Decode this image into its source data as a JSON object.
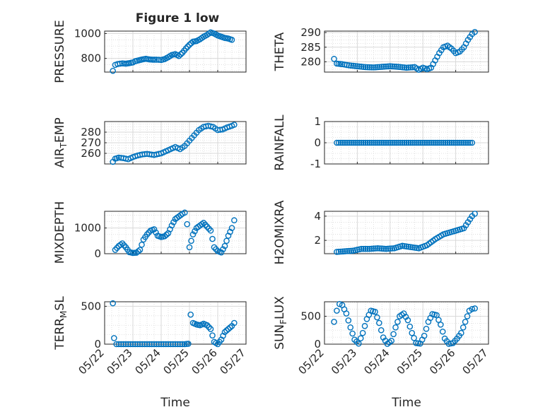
{
  "figure": {
    "title": "Figure 1 low",
    "marker_color": "#0072bd",
    "grid_color": "#d9d9d9",
    "axis_color": "#262626"
  },
  "chart_data": [
    {
      "id": "pressure",
      "type": "scatter",
      "xlabel": "",
      "ylabel": "PRESSURE",
      "xlim": [
        "05/22",
        "05/27"
      ],
      "ylim": [
        690,
        1020
      ],
      "yticks": [
        800,
        1000
      ],
      "show_xticklabels": false,
      "x": [
        "05/22 07:00",
        "05/22 09:00",
        "05/22 11:00",
        "05/22 13:00",
        "05/22 15:00",
        "05/22 18:00",
        "05/22 21:00",
        "05/23 00:00",
        "05/23 02:00",
        "05/23 05:00",
        "05/23 08:00",
        "05/23 11:00",
        "05/23 14:00",
        "05/23 17:00",
        "05/23 20:00",
        "05/24 00:00",
        "05/24 03:00",
        "05/24 06:00",
        "05/24 09:00",
        "05/24 12:00",
        "05/24 15:00",
        "05/24 18:00",
        "05/24 21:00",
        "05/25 00:00",
        "05/25 03:00",
        "05/25 06:00",
        "05/25 09:00",
        "05/25 12:00",
        "05/25 15:00",
        "05/25 18:00",
        "05/25 21:00",
        "05/26 00:00",
        "05/26 03:00",
        "05/26 06:00",
        "05/26 09:00",
        "05/26 12:00"
      ],
      "y": [
        700,
        748,
        755,
        758,
        760,
        758,
        762,
        768,
        778,
        785,
        792,
        797,
        792,
        790,
        790,
        788,
        795,
        810,
        828,
        835,
        820,
        845,
        880,
        910,
        935,
        940,
        955,
        975,
        990,
        1010,
        1000,
        985,
        975,
        965,
        960,
        950
      ]
    },
    {
      "id": "theta",
      "type": "scatter",
      "xlabel": "",
      "ylabel": "THETA",
      "xlim": [
        "05/22",
        "05/27"
      ],
      "ylim": [
        276.5,
        290.5
      ],
      "yticks": [
        280,
        285,
        290
      ],
      "show_xticklabels": false,
      "x": [
        "05/22 07:00",
        "05/22 09:00",
        "05/22 13:00",
        "05/22 18:00",
        "05/23 00:00",
        "05/23 06:00",
        "05/23 12:00",
        "05/23 18:00",
        "05/24 00:00",
        "05/24 06:00",
        "05/24 12:00",
        "05/24 18:00",
        "05/24 21:00",
        "05/25 00:00",
        "05/25 03:00",
        "05/25 06:00",
        "05/25 09:00",
        "05/25 12:00",
        "05/25 15:00",
        "05/25 18:00",
        "05/25 21:00",
        "05/26 00:00",
        "05/26 03:00",
        "05/26 06:00",
        "05/26 09:00",
        "05/26 12:00",
        "05/26 14:00"
      ],
      "y": [
        281,
        279.4,
        279.2,
        278.8,
        278.5,
        278.2,
        278.1,
        278.3,
        278.5,
        278.3,
        278.0,
        278.2,
        277.3,
        278.0,
        277.5,
        278.0,
        280.5,
        283.0,
        285.0,
        285.5,
        284.5,
        283.0,
        283.5,
        285.0,
        287.5,
        289.5,
        290.2
      ]
    },
    {
      "id": "air-temp",
      "type": "scatter",
      "xlabel": "",
      "ylabel": "AIR_TEMP",
      "xlim": [
        "05/22",
        "05/27"
      ],
      "ylim": [
        250,
        290
      ],
      "yticks": [
        260,
        270,
        280
      ],
      "show_xticklabels": false,
      "x": [
        "05/22 07:00",
        "05/22 09:00",
        "05/22 12:00",
        "05/22 16:00",
        "05/22 20:00",
        "05/23 00:00",
        "05/23 04:00",
        "05/23 08:00",
        "05/23 12:00",
        "05/23 18:00",
        "05/24 00:00",
        "05/24 06:00",
        "05/24 12:00",
        "05/24 16:00",
        "05/24 20:00",
        "05/25 00:00",
        "05/25 04:00",
        "05/25 08:00",
        "05/25 12:00",
        "05/25 16:00",
        "05/25 20:00",
        "05/26 00:00",
        "05/26 04:00",
        "05/26 08:00",
        "05/26 12:00",
        "05/26 14:00"
      ],
      "y": [
        252,
        255,
        256,
        255.5,
        254.5,
        256.5,
        258,
        259,
        259.5,
        258.5,
        260,
        263,
        266,
        264,
        267,
        272,
        277,
        282,
        285,
        286,
        285,
        282,
        282.5,
        284.5,
        286,
        287
      ]
    },
    {
      "id": "rainfall",
      "type": "scatter",
      "xlabel": "",
      "ylabel": "RAINFALL",
      "xlim": [
        "05/22",
        "05/27"
      ],
      "ylim": [
        -1,
        1
      ],
      "yticks": [
        -1,
        0,
        1
      ],
      "show_xticklabels": false,
      "x": [
        "05/22 09:00",
        "05/22 18:00",
        "05/23 03:00",
        "05/23 12:00",
        "05/23 21:00",
        "05/24 06:00",
        "05/24 15:00",
        "05/25 00:00",
        "05/25 09:00",
        "05/25 18:00",
        "05/26 03:00",
        "05/26 12:00"
      ],
      "y": [
        0,
        0,
        0,
        0,
        0,
        0,
        0,
        0,
        0,
        0,
        0,
        0
      ]
    },
    {
      "id": "mixdepth",
      "type": "scatter",
      "xlabel": "",
      "ylabel": "MIXDEPTH",
      "xlim": [
        "05/22",
        "05/27"
      ],
      "ylim": [
        0,
        1650
      ],
      "yticks": [
        0,
        1000
      ],
      "show_xticklabels": false,
      "x": [
        "05/22 09:00",
        "05/22 12:00",
        "05/22 15:00",
        "05/22 18:00",
        "05/22 21:00",
        "05/23 00:00",
        "05/23 03:00",
        "05/23 06:00",
        "05/23 09:00",
        "05/23 12:00",
        "05/23 15:00",
        "05/23 18:00",
        "05/23 21:00",
        "05/24 00:00",
        "05/24 03:00",
        "05/24 06:00",
        "05/24 09:00",
        "05/24 12:00",
        "05/24 15:00",
        "05/24 18:00",
        "05/24 20:00",
        "05/24 22:00",
        "05/25 00:00",
        "05/25 03:00",
        "05/25 06:00",
        "05/25 09:00",
        "05/25 12:00",
        "05/25 15:00",
        "05/25 18:00",
        "05/25 21:00",
        "05/26 00:00",
        "05/26 03:00",
        "05/26 06:00",
        "05/26 09:00",
        "05/26 12:00",
        "05/26 14:00"
      ],
      "y": [
        150,
        300,
        400,
        250,
        60,
        30,
        40,
        150,
        550,
        750,
        900,
        950,
        700,
        650,
        680,
        800,
        1100,
        1350,
        1450,
        1550,
        1600,
        1150,
        250,
        750,
        1000,
        1100,
        1200,
        1050,
        900,
        250,
        100,
        50,
        300,
        700,
        1000,
        1300
      ]
    },
    {
      "id": "h2omixra",
      "type": "scatter",
      "xlabel": "",
      "ylabel": "H2OMIXRA",
      "xlim": [
        "05/22",
        "05/27"
      ],
      "ylim": [
        0.9,
        4.4
      ],
      "yticks": [
        2,
        4
      ],
      "show_xticklabels": false,
      "x": [
        "05/22 09:00",
        "05/22 15:00",
        "05/22 21:00",
        "05/23 03:00",
        "05/23 09:00",
        "05/23 15:00",
        "05/23 21:00",
        "05/24 03:00",
        "05/24 09:00",
        "05/24 15:00",
        "05/24 21:00",
        "05/25 03:00",
        "05/25 09:00",
        "05/25 15:00",
        "05/25 21:00",
        "05/26 03:00",
        "05/26 06:00",
        "05/26 09:00",
        "05/26 12:00",
        "05/26 14:00"
      ],
      "y": [
        1.05,
        1.1,
        1.15,
        1.3,
        1.3,
        1.35,
        1.3,
        1.35,
        1.55,
        1.45,
        1.35,
        1.6,
        2.1,
        2.5,
        2.7,
        2.9,
        3.0,
        3.5,
        4.0,
        4.2
      ]
    },
    {
      "id": "terr-msl",
      "type": "scatter",
      "xlabel": "Time",
      "ylabel": "TERR_MSL",
      "xlim": [
        "05/22",
        "05/27"
      ],
      "ylim": [
        0,
        560
      ],
      "yticks": [
        0,
        500
      ],
      "show_xticklabels": true,
      "xticklabels": [
        "05/22",
        "05/23",
        "05/24",
        "05/25",
        "05/26",
        "05/27"
      ],
      "x": [
        "05/22 07:00",
        "05/22 08:00",
        "05/22 10:00",
        "05/22 14:00",
        "05/22 20:00",
        "05/23 02:00",
        "05/23 08:00",
        "05/23 14:00",
        "05/23 20:00",
        "05/24 02:00",
        "05/24 08:00",
        "05/24 14:00",
        "05/24 20:00",
        "05/24 23:00",
        "05/25 01:00",
        "05/25 03:00",
        "05/25 06:00",
        "05/25 09:00",
        "05/25 12:00",
        "05/25 15:00",
        "05/25 18:00",
        "05/25 21:00",
        "05/26 00:00",
        "05/26 03:00",
        "05/26 06:00",
        "05/26 09:00",
        "05/26 12:00",
        "05/26 14:00"
      ],
      "y": [
        540,
        80,
        0,
        0,
        0,
        0,
        0,
        0,
        0,
        0,
        0,
        0,
        0,
        5,
        390,
        280,
        260,
        250,
        270,
        250,
        200,
        30,
        0,
        60,
        160,
        200,
        240,
        280
      ]
    },
    {
      "id": "sun-flux",
      "type": "scatter",
      "xlabel": "Time",
      "ylabel": "SUN_FLUX",
      "xlim": [
        "05/22",
        "05/27"
      ],
      "ylim": [
        0,
        760
      ],
      "yticks": [
        0,
        500
      ],
      "show_xticklabels": true,
      "xticklabels": [
        "05/22",
        "05/23",
        "05/24",
        "05/25",
        "05/26",
        "05/27"
      ],
      "x": [
        "05/22 07:00",
        "05/22 09:00",
        "05/22 11:00",
        "05/22 13:00",
        "05/22 16:00",
        "05/22 19:00",
        "05/22 22:00",
        "05/23 01:00",
        "05/23 04:00",
        "05/23 07:00",
        "05/23 10:00",
        "05/23 13:00",
        "05/23 16:00",
        "05/23 19:00",
        "05/23 22:00",
        "05/24 01:00",
        "05/24 04:00",
        "05/24 07:00",
        "05/24 10:00",
        "05/24 13:00",
        "05/24 16:00",
        "05/24 19:00",
        "05/24 22:00",
        "05/25 01:00",
        "05/25 04:00",
        "05/25 07:00",
        "05/25 10:00",
        "05/25 13:00",
        "05/25 16:00",
        "05/25 19:00",
        "05/25 22:00",
        "05/26 01:00",
        "05/26 04:00",
        "05/26 07:00",
        "05/26 10:00",
        "05/26 12:00",
        "05/26 14:00"
      ],
      "y": [
        400,
        600,
        720,
        700,
        550,
        300,
        80,
        10,
        200,
        450,
        600,
        580,
        380,
        120,
        5,
        60,
        300,
        500,
        550,
        430,
        200,
        20,
        10,
        150,
        400,
        540,
        520,
        350,
        100,
        5,
        20,
        100,
        200,
        400,
        600,
        630,
        640
      ]
    }
  ]
}
